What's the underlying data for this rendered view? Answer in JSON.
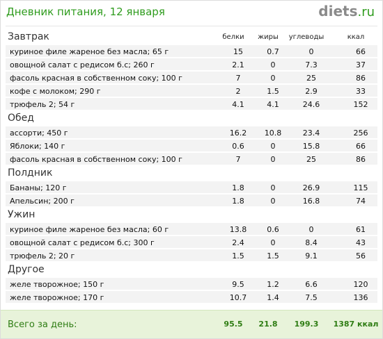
{
  "title": "Дневник питания, 12 января",
  "logo": {
    "name": "diets",
    "tld": ".ru"
  },
  "columns": {
    "protein": "белки",
    "fat": "жиры",
    "carbs": "углеводы",
    "kcal": "ккал"
  },
  "sections": [
    {
      "name": "Завтрак",
      "rows": [
        {
          "name": "куриное филе жареное без масла; 65 г",
          "protein": "15",
          "fat": "0.7",
          "carbs": "0",
          "kcal": "66"
        },
        {
          "name": "овощной салат с редисом б.с; 260 г",
          "protein": "2.1",
          "fat": "0",
          "carbs": "7.3",
          "kcal": "37"
        },
        {
          "name": "фасоль красная в собственном соку; 100 г",
          "protein": "7",
          "fat": "0",
          "carbs": "25",
          "kcal": "86"
        },
        {
          "name": "кофе с молоком; 290 г",
          "protein": "2",
          "fat": "1.5",
          "carbs": "2.9",
          "kcal": "33"
        },
        {
          "name": "трюфель 2; 54 г",
          "protein": "4.1",
          "fat": "4.1",
          "carbs": "24.6",
          "kcal": "152"
        }
      ]
    },
    {
      "name": "Обед",
      "rows": [
        {
          "name": "ассорти; 450 г",
          "protein": "16.2",
          "fat": "10.8",
          "carbs": "23.4",
          "kcal": "256"
        },
        {
          "name": "Яблоки; 140 г",
          "protein": "0.6",
          "fat": "0",
          "carbs": "15.8",
          "kcal": "66"
        },
        {
          "name": "фасоль красная в собственном соку; 100 г",
          "protein": "7",
          "fat": "0",
          "carbs": "25",
          "kcal": "86"
        }
      ]
    },
    {
      "name": "Полдник",
      "rows": [
        {
          "name": "Бананы; 120 г",
          "protein": "1.8",
          "fat": "0",
          "carbs": "26.9",
          "kcal": "115"
        },
        {
          "name": "Апельсин; 200 г",
          "protein": "1.8",
          "fat": "0",
          "carbs": "16.8",
          "kcal": "74"
        }
      ]
    },
    {
      "name": "Ужин",
      "rows": [
        {
          "name": "куриное филе жареное без масла; 60 г",
          "protein": "13.8",
          "fat": "0.6",
          "carbs": "0",
          "kcal": "61"
        },
        {
          "name": "овощной салат с редисом б.с; 300 г",
          "protein": "2.4",
          "fat": "0",
          "carbs": "8.4",
          "kcal": "43"
        },
        {
          "name": "трюфель 2; 20 г",
          "protein": "1.5",
          "fat": "1.5",
          "carbs": "9.1",
          "kcal": "56"
        }
      ]
    },
    {
      "name": "Другое",
      "rows": [
        {
          "name": "желе творожное; 150 г",
          "protein": "9.5",
          "fat": "1.2",
          "carbs": "6.6",
          "kcal": "120"
        },
        {
          "name": "желе творожное; 170 г",
          "protein": "10.7",
          "fat": "1.4",
          "carbs": "7.5",
          "kcal": "136"
        }
      ]
    }
  ],
  "total": {
    "label": "Всего за день:",
    "protein": "95.5",
    "fat": "21.8",
    "carbs": "199.3",
    "kcal": "1387 ккал"
  },
  "colors": {
    "accent": "#2f9c1e",
    "total_bg": "#e8f3da",
    "row_bg": "#f3f3f3"
  }
}
